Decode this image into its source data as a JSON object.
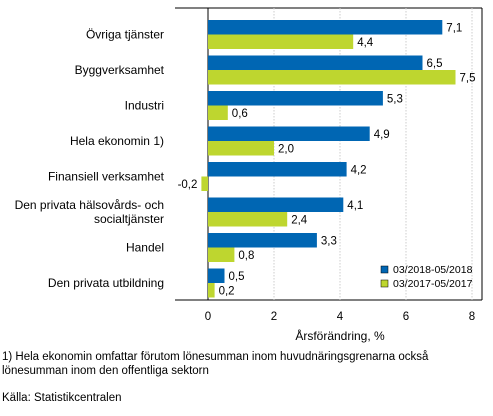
{
  "chart_data": {
    "type": "bar",
    "orientation": "horizontal",
    "categories": [
      "Övriga tjänster",
      "Byggverksamhet",
      "Industri",
      "Hela ekonomin 1)",
      "Finansiell verksamhet",
      [
        "Den privata hälsovårds- och",
        "socialtjänster"
      ],
      "Handel",
      "Den privata utbildning"
    ],
    "series": [
      {
        "name": "03/2018-05/2018",
        "color": "#0066b3",
        "values": [
          7.1,
          6.5,
          5.3,
          4.9,
          4.2,
          4.1,
          3.3,
          0.5
        ],
        "labels": [
          "7,1",
          "6,5",
          "5,3",
          "4,9",
          "4,2",
          "4,1",
          "3,3",
          "0,5"
        ]
      },
      {
        "name": "03/2017-05/2017",
        "color": "#bed62f",
        "values": [
          4.4,
          7.5,
          0.6,
          2.0,
          -0.2,
          2.4,
          0.8,
          0.2
        ],
        "labels": [
          "4,4",
          "7,5",
          "0,6",
          "2,0",
          "-0,2",
          "2,4",
          "0,8",
          "0,2"
        ]
      }
    ],
    "xlabel": "Årsförändring, %",
    "xlim": [
      -1,
      8
    ],
    "xticks": [
      0,
      2,
      4,
      6,
      8
    ],
    "xtick_labels": [
      "0",
      "2",
      "4",
      "6",
      "8"
    ],
    "grid": "vertical",
    "legend_position": "bottom-right"
  },
  "footnotes": {
    "note_line1": "1) Hela ekonomin omfattar förutom lönesumman inom huvudnäringsgrenarna också",
    "note_line2": "lönesumman inom den offentliga sektorn",
    "source": "Källa: Statistikcentralen"
  }
}
